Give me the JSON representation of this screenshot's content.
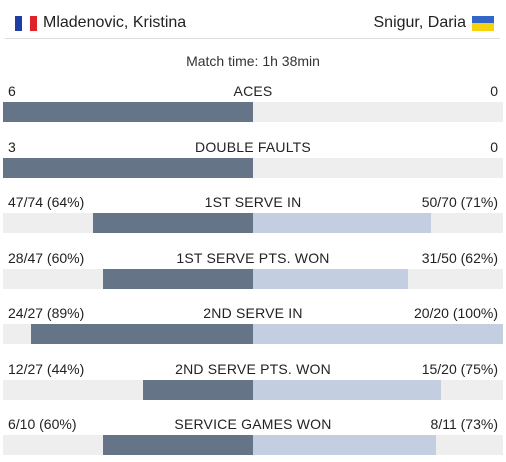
{
  "header": {
    "player_left": {
      "name": "Mladenovic, Kristina",
      "flag": "france-flag",
      "flag_colors": [
        "#1f3ea3",
        "#ffffff",
        "#e0232b"
      ]
    },
    "player_right": {
      "name": "Snigur, Daria",
      "flag": "ukraine-flag",
      "flag_colors": [
        "#2f66c7",
        "#f5d20b"
      ]
    }
  },
  "match_time": "Match time: 1h 38min",
  "colors": {
    "left_bar": "#667487",
    "right_bar": "#c3cfe0",
    "track": "#eeeeee"
  },
  "stats": [
    {
      "label": "ACES",
      "left": "6",
      "right": "0",
      "left_fraction": 1.0,
      "right_fraction": 0.0
    },
    {
      "label": "DOUBLE FAULTS",
      "left": "3",
      "right": "0",
      "left_fraction": 1.0,
      "right_fraction": 0.0
    },
    {
      "label": "1ST SERVE IN",
      "left": "47/74 (64%)",
      "right": "50/70 (71%)",
      "left_fraction": 0.64,
      "right_fraction": 0.71
    },
    {
      "label": "1ST SERVE PTS. WON",
      "left": "28/47 (60%)",
      "right": "31/50 (62%)",
      "left_fraction": 0.6,
      "right_fraction": 0.62
    },
    {
      "label": "2ND SERVE IN",
      "left": "24/27 (89%)",
      "right": "20/20 (100%)",
      "left_fraction": 0.89,
      "right_fraction": 1.0
    },
    {
      "label": "2ND SERVE PTS. WON",
      "left": "12/27 (44%)",
      "right": "15/20 (75%)",
      "left_fraction": 0.44,
      "right_fraction": 0.75
    },
    {
      "label": "SERVICE GAMES WON",
      "left": "6/10 (60%)",
      "right": "8/11 (73%)",
      "left_fraction": 0.6,
      "right_fraction": 0.73
    }
  ]
}
